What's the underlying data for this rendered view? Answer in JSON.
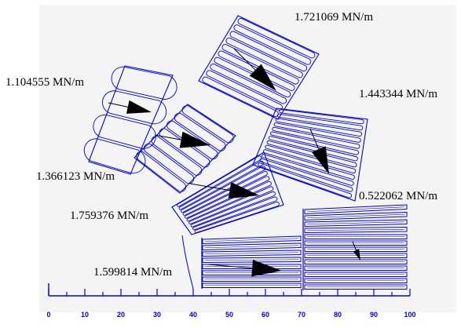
{
  "line_color": "#0000dd",
  "arrow_color": "#000000",
  "background_color": "#f4f4f4",
  "force_labels": [
    {
      "id": "top",
      "text": "1.721069 MN/m"
    },
    {
      "id": "upper-left",
      "text": "1.104555 MN/m"
    },
    {
      "id": "upper-right",
      "text": "1.443344 MN/m"
    },
    {
      "id": "mid-left",
      "text": "1.366123 MN/m"
    },
    {
      "id": "right-lower",
      "text": "0.522062 MN/m"
    },
    {
      "id": "lower-left",
      "text": "1.759376 MN/m"
    },
    {
      "id": "bottom",
      "text": "1.599814 MN/m"
    }
  ],
  "scale": {
    "ticks": [
      0,
      10,
      20,
      30,
      40,
      50,
      60,
      70,
      80,
      90,
      100
    ],
    "tick_labels": [
      "0",
      "10",
      "20",
      "30",
      "40",
      "50",
      "60",
      "70",
      "80",
      "90",
      "100"
    ]
  }
}
